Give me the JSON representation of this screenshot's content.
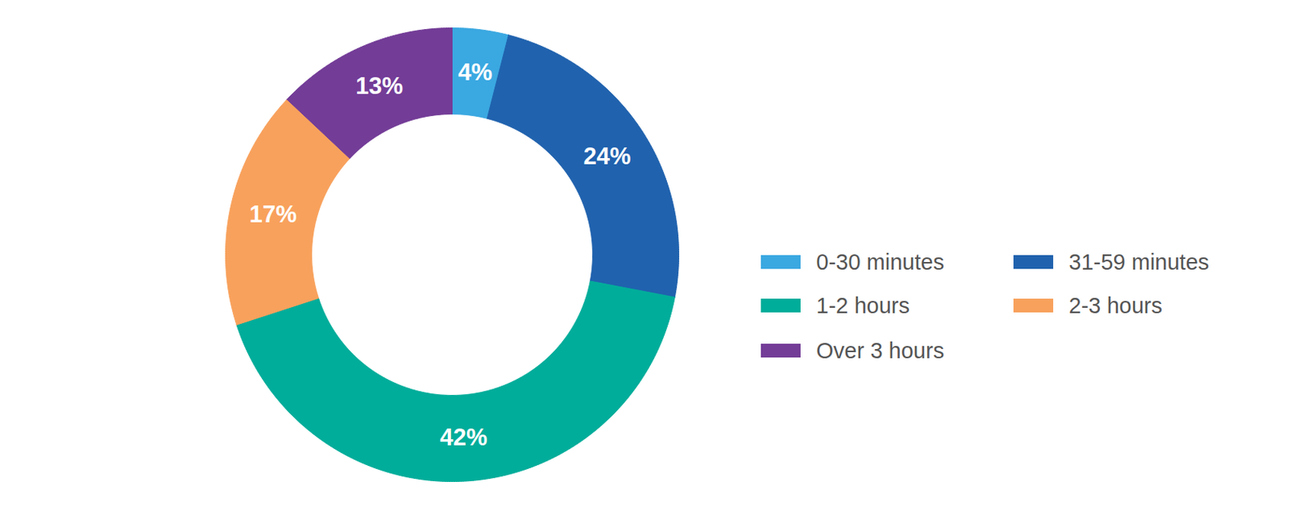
{
  "chart_data": {
    "type": "pie",
    "categories": [
      "0-30 minutes",
      "31-59 minutes",
      "1-2 hours",
      "2-3 hours",
      "Over 3 hours"
    ],
    "values": [
      4,
      24,
      42,
      17,
      13
    ],
    "value_labels": [
      "4%",
      "24%",
      "42%",
      "17%",
      "13%"
    ],
    "colors": [
      "#3aa8e1",
      "#2062ae",
      "#00ad9a",
      "#f8a15c",
      "#733c97"
    ],
    "data_labels": true,
    "legend": "right"
  }
}
